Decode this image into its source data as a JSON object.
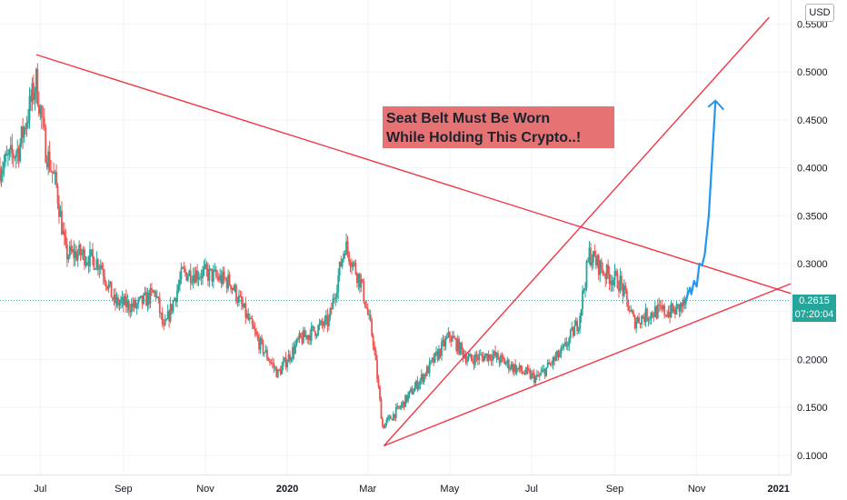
{
  "chart_data": {
    "type": "candlestick",
    "symbol_currency": "USD",
    "y_axis": {
      "ticks": [
        "0.5500",
        "0.5000",
        "0.4500",
        "0.4000",
        "0.3500",
        "0.3000",
        "0.2500",
        "0.2000",
        "0.1500",
        "0.1000"
      ],
      "tick_values": [
        0.55,
        0.5,
        0.45,
        0.4,
        0.35,
        0.3,
        0.25,
        0.2,
        0.15,
        0.1
      ],
      "range": [
        0.08,
        0.575
      ]
    },
    "x_axis": {
      "ticks": [
        "Jul",
        "Sep",
        "Nov",
        "2020",
        "Mar",
        "May",
        "Jul",
        "Sep",
        "Nov",
        "2021"
      ],
      "bold_ticks": [
        "2020",
        "2021"
      ],
      "range": [
        "2019-06-01",
        "2021-01-10"
      ]
    },
    "price_series_close_estimates": [
      {
        "date": "2019-06-01",
        "value": 0.4
      },
      {
        "date": "2019-06-15",
        "value": 0.42
      },
      {
        "date": "2019-06-28",
        "value": 0.49
      },
      {
        "date": "2019-07-05",
        "value": 0.42
      },
      {
        "date": "2019-07-13",
        "value": 0.38
      },
      {
        "date": "2019-07-20",
        "value": 0.31
      },
      {
        "date": "2019-08-01",
        "value": 0.31
      },
      {
        "date": "2019-08-15",
        "value": 0.3
      },
      {
        "date": "2019-08-25",
        "value": 0.26
      },
      {
        "date": "2019-09-10",
        "value": 0.255
      },
      {
        "date": "2019-09-25",
        "value": 0.27
      },
      {
        "date": "2019-10-01",
        "value": 0.23
      },
      {
        "date": "2019-10-15",
        "value": 0.29
      },
      {
        "date": "2019-11-01",
        "value": 0.29
      },
      {
        "date": "2019-11-20",
        "value": 0.28
      },
      {
        "date": "2019-12-10",
        "value": 0.22
      },
      {
        "date": "2019-12-25",
        "value": 0.185
      },
      {
        "date": "2020-01-10",
        "value": 0.22
      },
      {
        "date": "2020-02-01",
        "value": 0.24
      },
      {
        "date": "2020-02-13",
        "value": 0.32
      },
      {
        "date": "2020-02-25",
        "value": 0.28
      },
      {
        "date": "2020-03-05",
        "value": 0.22
      },
      {
        "date": "2020-03-12",
        "value": 0.13
      },
      {
        "date": "2020-03-25",
        "value": 0.15
      },
      {
        "date": "2020-04-15",
        "value": 0.19
      },
      {
        "date": "2020-05-01",
        "value": 0.225
      },
      {
        "date": "2020-05-15",
        "value": 0.2
      },
      {
        "date": "2020-06-01",
        "value": 0.205
      },
      {
        "date": "2020-06-20",
        "value": 0.19
      },
      {
        "date": "2020-07-05",
        "value": 0.18
      },
      {
        "date": "2020-07-25",
        "value": 0.21
      },
      {
        "date": "2020-08-05",
        "value": 0.24
      },
      {
        "date": "2020-08-13",
        "value": 0.31
      },
      {
        "date": "2020-08-25",
        "value": 0.29
      },
      {
        "date": "2020-09-05",
        "value": 0.28
      },
      {
        "date": "2020-09-15",
        "value": 0.24
      },
      {
        "date": "2020-10-01",
        "value": 0.25
      },
      {
        "date": "2020-10-15",
        "value": 0.25
      },
      {
        "date": "2020-10-25",
        "value": 0.26
      }
    ],
    "trendlines": [
      {
        "name": "descending-resistance",
        "color": "#f23645",
        "from": {
          "date": "2019-06-28",
          "value": 0.518
        },
        "to": {
          "date": "2021-01-10",
          "value": 0.269
        }
      },
      {
        "name": "ascending-support",
        "color": "#f23645",
        "from": {
          "date": "2020-03-13",
          "value": 0.11
        },
        "to": {
          "date": "2021-01-10",
          "value": 0.279
        }
      },
      {
        "name": "ascending-channel",
        "color": "#f23645",
        "from": {
          "date": "2020-03-13",
          "value": 0.11
        },
        "to": {
          "date": "2020-12-25",
          "value": 0.557
        }
      }
    ],
    "projection_path": {
      "color": "#2196f3",
      "points": [
        {
          "date": "2020-10-24",
          "value": 0.262
        },
        {
          "date": "2020-10-27",
          "value": 0.275
        },
        {
          "date": "2020-10-28",
          "value": 0.268
        },
        {
          "date": "2020-10-30",
          "value": 0.282
        },
        {
          "date": "2020-11-01",
          "value": 0.276
        },
        {
          "date": "2020-11-03",
          "value": 0.3
        },
        {
          "date": "2020-11-05",
          "value": 0.298
        },
        {
          "date": "2020-11-07",
          "value": 0.31
        },
        {
          "date": "2020-11-10",
          "value": 0.35
        },
        {
          "date": "2020-11-15",
          "value": 0.47
        }
      ]
    },
    "annotation": {
      "text": "Seat Belt Must Be Worn\nWhile Holding This Crypto..!",
      "bg": "#e57373"
    },
    "last_price": {
      "value": 0.2615,
      "label": "0.2615",
      "countdown": "07:20:04",
      "color": "#26a69a"
    },
    "colors": {
      "up": "#26a69a",
      "down": "#ef5350",
      "grid": "#f0f3fa",
      "trendline": "#f23645"
    }
  }
}
